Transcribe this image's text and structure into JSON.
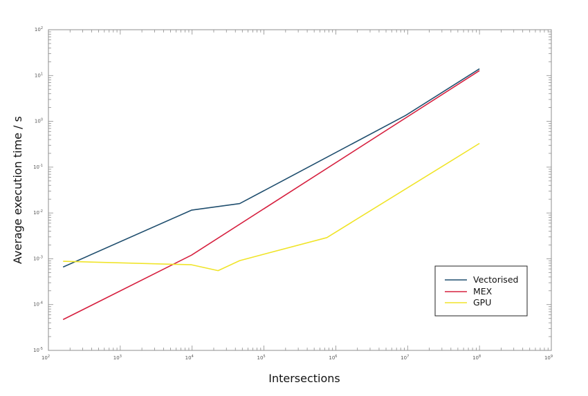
{
  "chart_data": {
    "type": "line",
    "title": "",
    "xlabel": "Intersections",
    "ylabel": "Average execution time / s",
    "xscale": "log",
    "yscale": "log",
    "xlim": [
      100,
      1000000000
    ],
    "ylim": [
      1e-05,
      100
    ],
    "grid": false,
    "legend_position": "lower right",
    "x_ticks": [
      {
        "base": "10",
        "exp": "2",
        "value": 100
      },
      {
        "base": "10",
        "exp": "3",
        "value": 1000
      },
      {
        "base": "10",
        "exp": "4",
        "value": 10000
      },
      {
        "base": "10",
        "exp": "5",
        "value": 100000
      },
      {
        "base": "10",
        "exp": "6",
        "value": 1000000
      },
      {
        "base": "10",
        "exp": "7",
        "value": 10000000
      },
      {
        "base": "10",
        "exp": "8",
        "value": 100000000
      },
      {
        "base": "10",
        "exp": "9",
        "value": 1000000000
      }
    ],
    "y_ticks": [
      {
        "base": "10",
        "exp": "-5",
        "value": 1e-05
      },
      {
        "base": "10",
        "exp": "-4",
        "value": 0.0001
      },
      {
        "base": "10",
        "exp": "-3",
        "value": 0.001
      },
      {
        "base": "10",
        "exp": "-2",
        "value": 0.01
      },
      {
        "base": "10",
        "exp": "-1",
        "value": 0.1
      },
      {
        "base": "10",
        "exp": "0",
        "value": 1
      },
      {
        "base": "10",
        "exp": "1",
        "value": 10
      },
      {
        "base": "10",
        "exp": "2",
        "value": 100
      }
    ],
    "series": [
      {
        "name": "Vectorised",
        "color": "#1f4e6e",
        "x": [
          160,
          9800,
          46000,
          9400000,
          100000000
        ],
        "y": [
          0.00066,
          0.0115,
          0.016,
          1.35,
          14
        ]
      },
      {
        "name": "MEX",
        "color": "#d6203f",
        "x": [
          160,
          9800,
          100000000
        ],
        "y": [
          4.7e-05,
          0.0012,
          12.8
        ]
      },
      {
        "name": "GPU",
        "color": "#f0e428",
        "x": [
          160,
          9800,
          23000,
          46000,
          750000,
          100000000
        ],
        "y": [
          0.00088,
          0.00074,
          0.00055,
          0.00091,
          0.0029,
          0.33
        ]
      }
    ]
  },
  "legend": {
    "items": [
      {
        "label": "Vectorised",
        "color": "#1f4e6e"
      },
      {
        "label": "MEX",
        "color": "#d6203f"
      },
      {
        "label": "GPU",
        "color": "#f0e428"
      }
    ]
  }
}
